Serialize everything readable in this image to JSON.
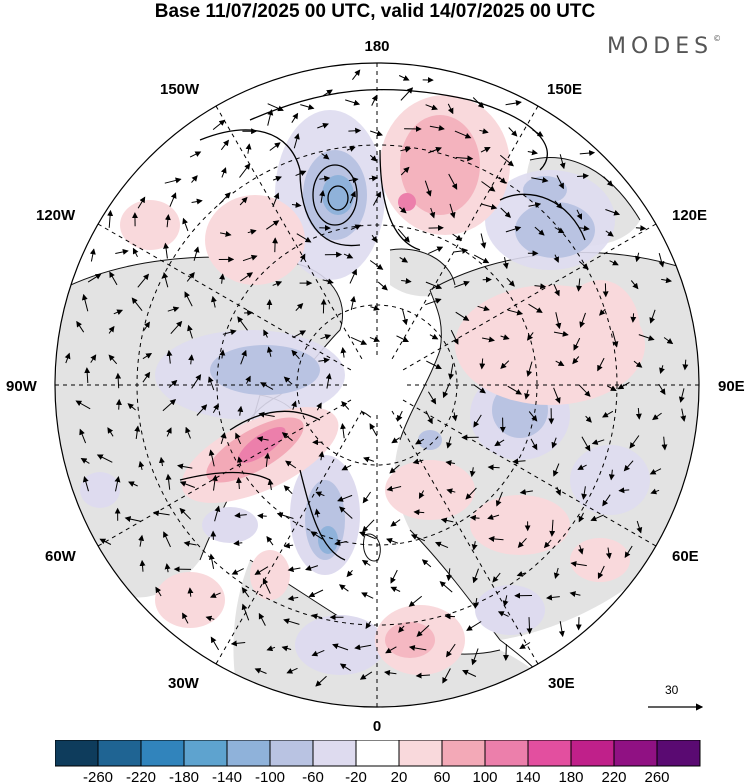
{
  "title": "Base 11/07/2025 00 UTC, valid 14/07/2025 00 UTC",
  "brand": "MODES",
  "brand_mark": "©",
  "longitude_labels": {
    "top": "180",
    "bottom": "0",
    "left": "90W",
    "right": "90E",
    "l150": "150W",
    "r150": "150E",
    "l120": "120W",
    "r120": "120E",
    "l60": "60W",
    "r60": "60E",
    "l30": "30W",
    "r30": "30E"
  },
  "wind_reference": {
    "value": "30"
  },
  "colorbar": {
    "colors": [
      "#0e3c5c",
      "#1f6493",
      "#3184bc",
      "#5ea3cf",
      "#8fb2da",
      "#b9c3e2",
      "#dedbef",
      "#ffffff",
      "#f9d9dc",
      "#f3a9b7",
      "#ec7fab",
      "#e34f9f",
      "#c0208a",
      "#901183",
      "#5a0a72"
    ],
    "ticks": [
      "-260",
      "-220",
      "-180",
      "-140",
      "-100",
      "-60",
      "-20",
      "20",
      "60",
      "100",
      "140",
      "180",
      "220",
      "260"
    ]
  }
}
